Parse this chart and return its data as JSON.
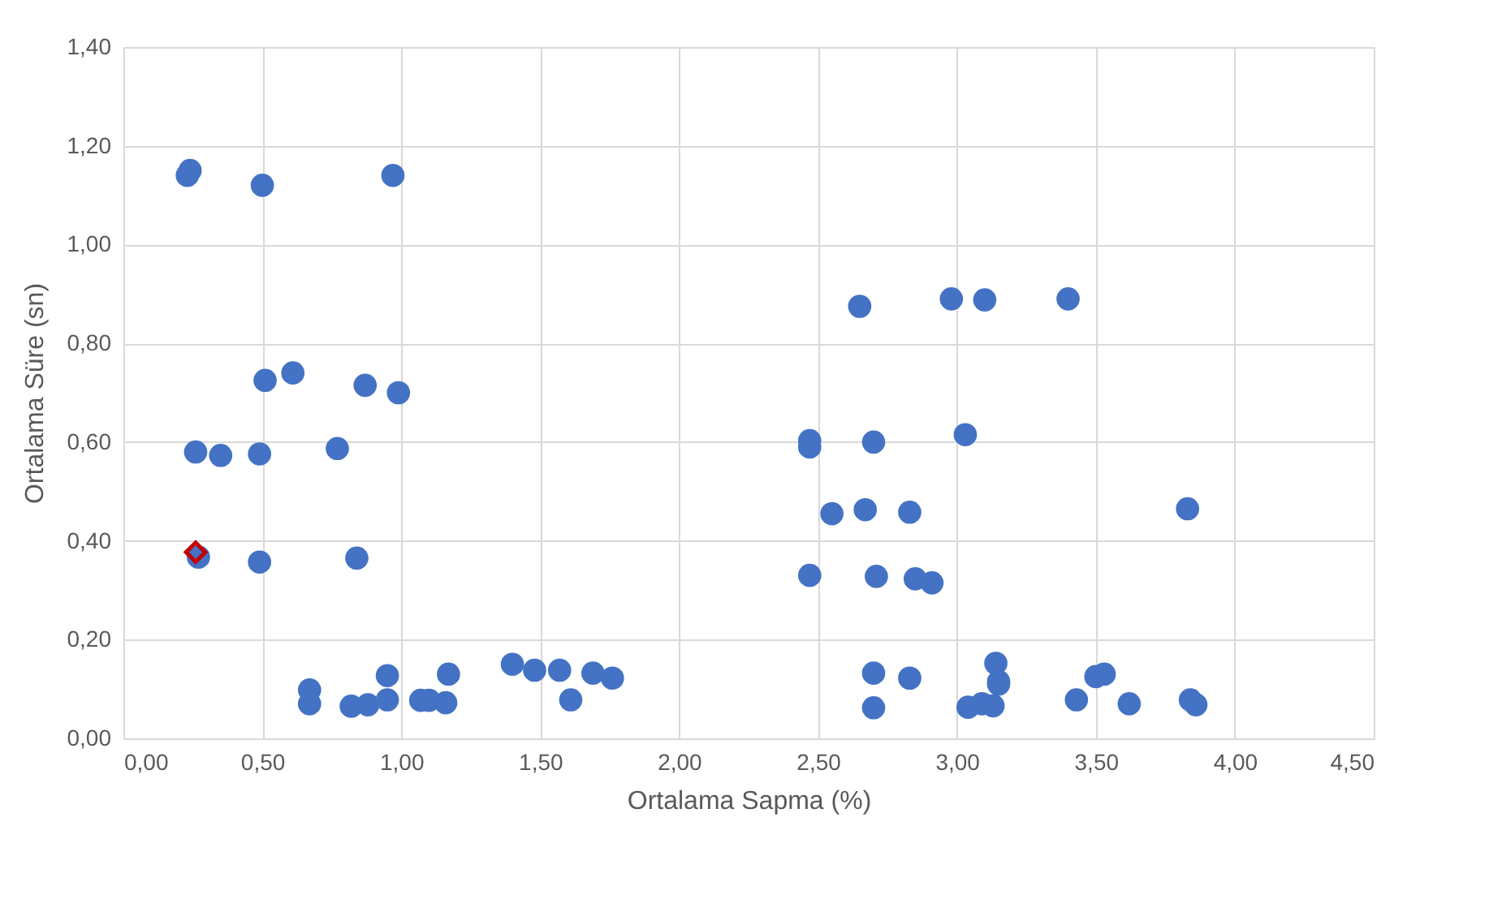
{
  "chart_data": {
    "type": "scatter",
    "xlabel": "Ortalama Sapma (%)",
    "ylabel": "Ortalama Süre (sn)",
    "grid": true,
    "xlim": [
      0,
      4.5
    ],
    "ylim": [
      0,
      1.4
    ],
    "xticks": [
      {
        "value": 0,
        "label": "0,00"
      },
      {
        "value": 0.5,
        "label": "0,50"
      },
      {
        "value": 1,
        "label": "1,00"
      },
      {
        "value": 1.5,
        "label": "1,50"
      },
      {
        "value": 2,
        "label": "2,00"
      },
      {
        "value": 2.5,
        "label": "2,50"
      },
      {
        "value": 3,
        "label": "3,00"
      },
      {
        "value": 3.5,
        "label": "3,50"
      },
      {
        "value": 4,
        "label": "4,00"
      },
      {
        "value": 4.5,
        "label": "4,50"
      }
    ],
    "yticks": [
      {
        "value": 0,
        "label": "0,00"
      },
      {
        "value": 0.2,
        "label": "0,20"
      },
      {
        "value": 0.4,
        "label": "0,40"
      },
      {
        "value": 0.6,
        "label": "0,60"
      },
      {
        "value": 0.8,
        "label": "0,80"
      },
      {
        "value": 1,
        "label": "1,00"
      },
      {
        "value": 1.2,
        "label": "1,20"
      },
      {
        "value": 1.4,
        "label": "1,40"
      }
    ],
    "series": [
      {
        "color": "#4472c4",
        "marker": "circle",
        "x": [
          0.23,
          0.24,
          0.5,
          0.97,
          0.51,
          0.61,
          0.87,
          0.99,
          0.26,
          0.35,
          0.49,
          0.77,
          0.27,
          0.49,
          0.84,
          0.67,
          0.67,
          0.82,
          0.88,
          0.95,
          0.95,
          1.07,
          1.1,
          1.16,
          1.17,
          1.4,
          1.48,
          1.57,
          1.61,
          1.69,
          1.76,
          2.65,
          2.98,
          3.1,
          3.4,
          2.47,
          2.47,
          2.7,
          3.03,
          2.55,
          2.67,
          2.83,
          3.83,
          2.47,
          2.71,
          2.85,
          2.91,
          2.7,
          2.7,
          2.83,
          3.04,
          3.09,
          3.13,
          3.14,
          3.15,
          3.15,
          3.43,
          3.5,
          3.53,
          3.62,
          3.84,
          3.86
        ],
        "values": [
          1.14,
          1.15,
          1.12,
          1.14,
          0.725,
          0.74,
          0.715,
          0.7,
          0.58,
          0.573,
          0.576,
          0.587,
          0.367,
          0.357,
          0.365,
          0.098,
          0.07,
          0.065,
          0.068,
          0.127,
          0.078,
          0.077,
          0.077,
          0.072,
          0.13,
          0.15,
          0.138,
          0.138,
          0.078,
          0.132,
          0.122,
          0.875,
          0.89,
          0.888,
          0.89,
          0.603,
          0.59,
          0.6,
          0.615,
          0.455,
          0.463,
          0.458,
          0.465,
          0.33,
          0.328,
          0.323,
          0.315,
          0.132,
          0.062,
          0.122,
          0.063,
          0.07,
          0.066,
          0.152,
          0.115,
          0.11,
          0.078,
          0.125,
          0.13,
          0.07,
          0.078,
          0.068
        ]
      },
      {
        "color": "#c00000",
        "marker": "diamond",
        "x": [
          0.26
        ],
        "values": [
          0.377
        ]
      }
    ]
  }
}
